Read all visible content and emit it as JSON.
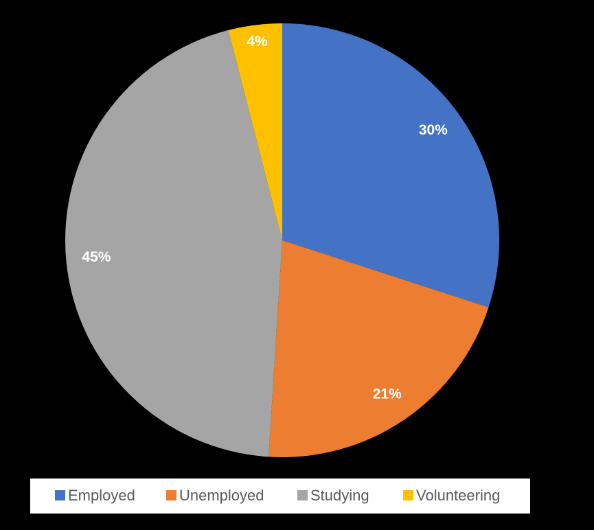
{
  "chart_data": {
    "type": "pie",
    "categories": [
      "Employed",
      "Unemployed",
      "Studying",
      "Volunteering"
    ],
    "values": [
      30,
      21,
      45,
      4
    ],
    "value_labels": [
      "30%",
      "21%",
      "45%",
      "4%"
    ],
    "colors": [
      "#4472c4",
      "#ed7d31",
      "#a5a5a5",
      "#ffc000"
    ],
    "start_angle": 0,
    "direction": "clockwise",
    "legend": "bottom"
  }
}
